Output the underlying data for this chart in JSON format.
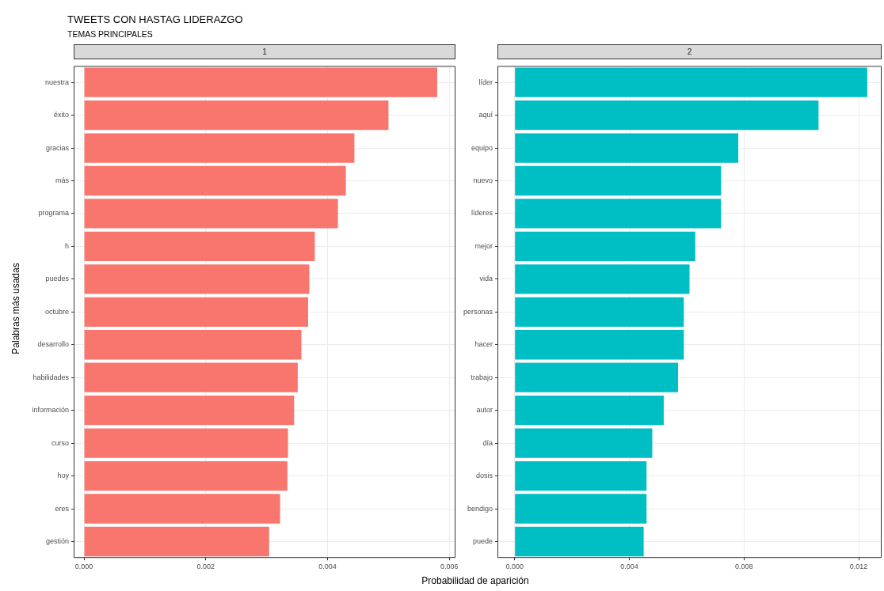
{
  "chart_data": [
    {
      "type": "bar",
      "orientation": "horizontal",
      "title": "TWEETS CON HASTAG LIDERAZGO",
      "subtitle": "TEMAS PRINCIPALES",
      "xlabel": "Probabilidad de aparición",
      "ylabel": "Palabras más usadas",
      "annotations": [
        "1"
      ],
      "categories": [
        "nuestra",
        "éxito",
        "gracias",
        "más",
        "programa",
        "h",
        "puedes",
        "octubre",
        "desarrollo",
        "habilidades",
        "información",
        "curso",
        "hoy",
        "eres",
        "gestión"
      ],
      "values": [
        0.0058,
        0.005,
        0.00444,
        0.0043,
        0.00417,
        0.00379,
        0.0037,
        0.00368,
        0.00357,
        0.00351,
        0.00345,
        0.00335,
        0.00334,
        0.00322,
        0.00304
      ],
      "color": "#f8766d",
      "xlim": [
        -0.00017,
        0.0061
      ],
      "xticks": [
        {
          "value": 0,
          "label": "0.000"
        },
        {
          "value": 0.002,
          "label": "0.002"
        },
        {
          "value": 0.004,
          "label": "0.004"
        },
        {
          "value": 0.006,
          "label": "0.006"
        }
      ],
      "grid": true,
      "legend": false
    },
    {
      "type": "bar",
      "orientation": "horizontal",
      "annotations": [
        "2"
      ],
      "categories": [
        "líder",
        "aquí",
        "equipo",
        "nuevo",
        "líderes",
        "mejor",
        "vida",
        "personas",
        "hacer",
        "trabajo",
        "autor",
        "día",
        "dosis",
        "bendigo",
        "puede"
      ],
      "values": [
        0.0123,
        0.0106,
        0.0078,
        0.0072,
        0.0072,
        0.0063,
        0.0061,
        0.0059,
        0.0059,
        0.0057,
        0.0052,
        0.0048,
        0.0046,
        0.0046,
        0.0045
      ],
      "color": "#00bfc4",
      "xlim": [
        -0.0006,
        0.0128
      ],
      "xticks": [
        {
          "value": 0,
          "label": "0.000"
        },
        {
          "value": 0.004,
          "label": "0.004"
        },
        {
          "value": 0.008,
          "label": "0.008"
        },
        {
          "value": 0.012,
          "label": "0.012"
        }
      ],
      "grid": true,
      "legend": false
    }
  ]
}
